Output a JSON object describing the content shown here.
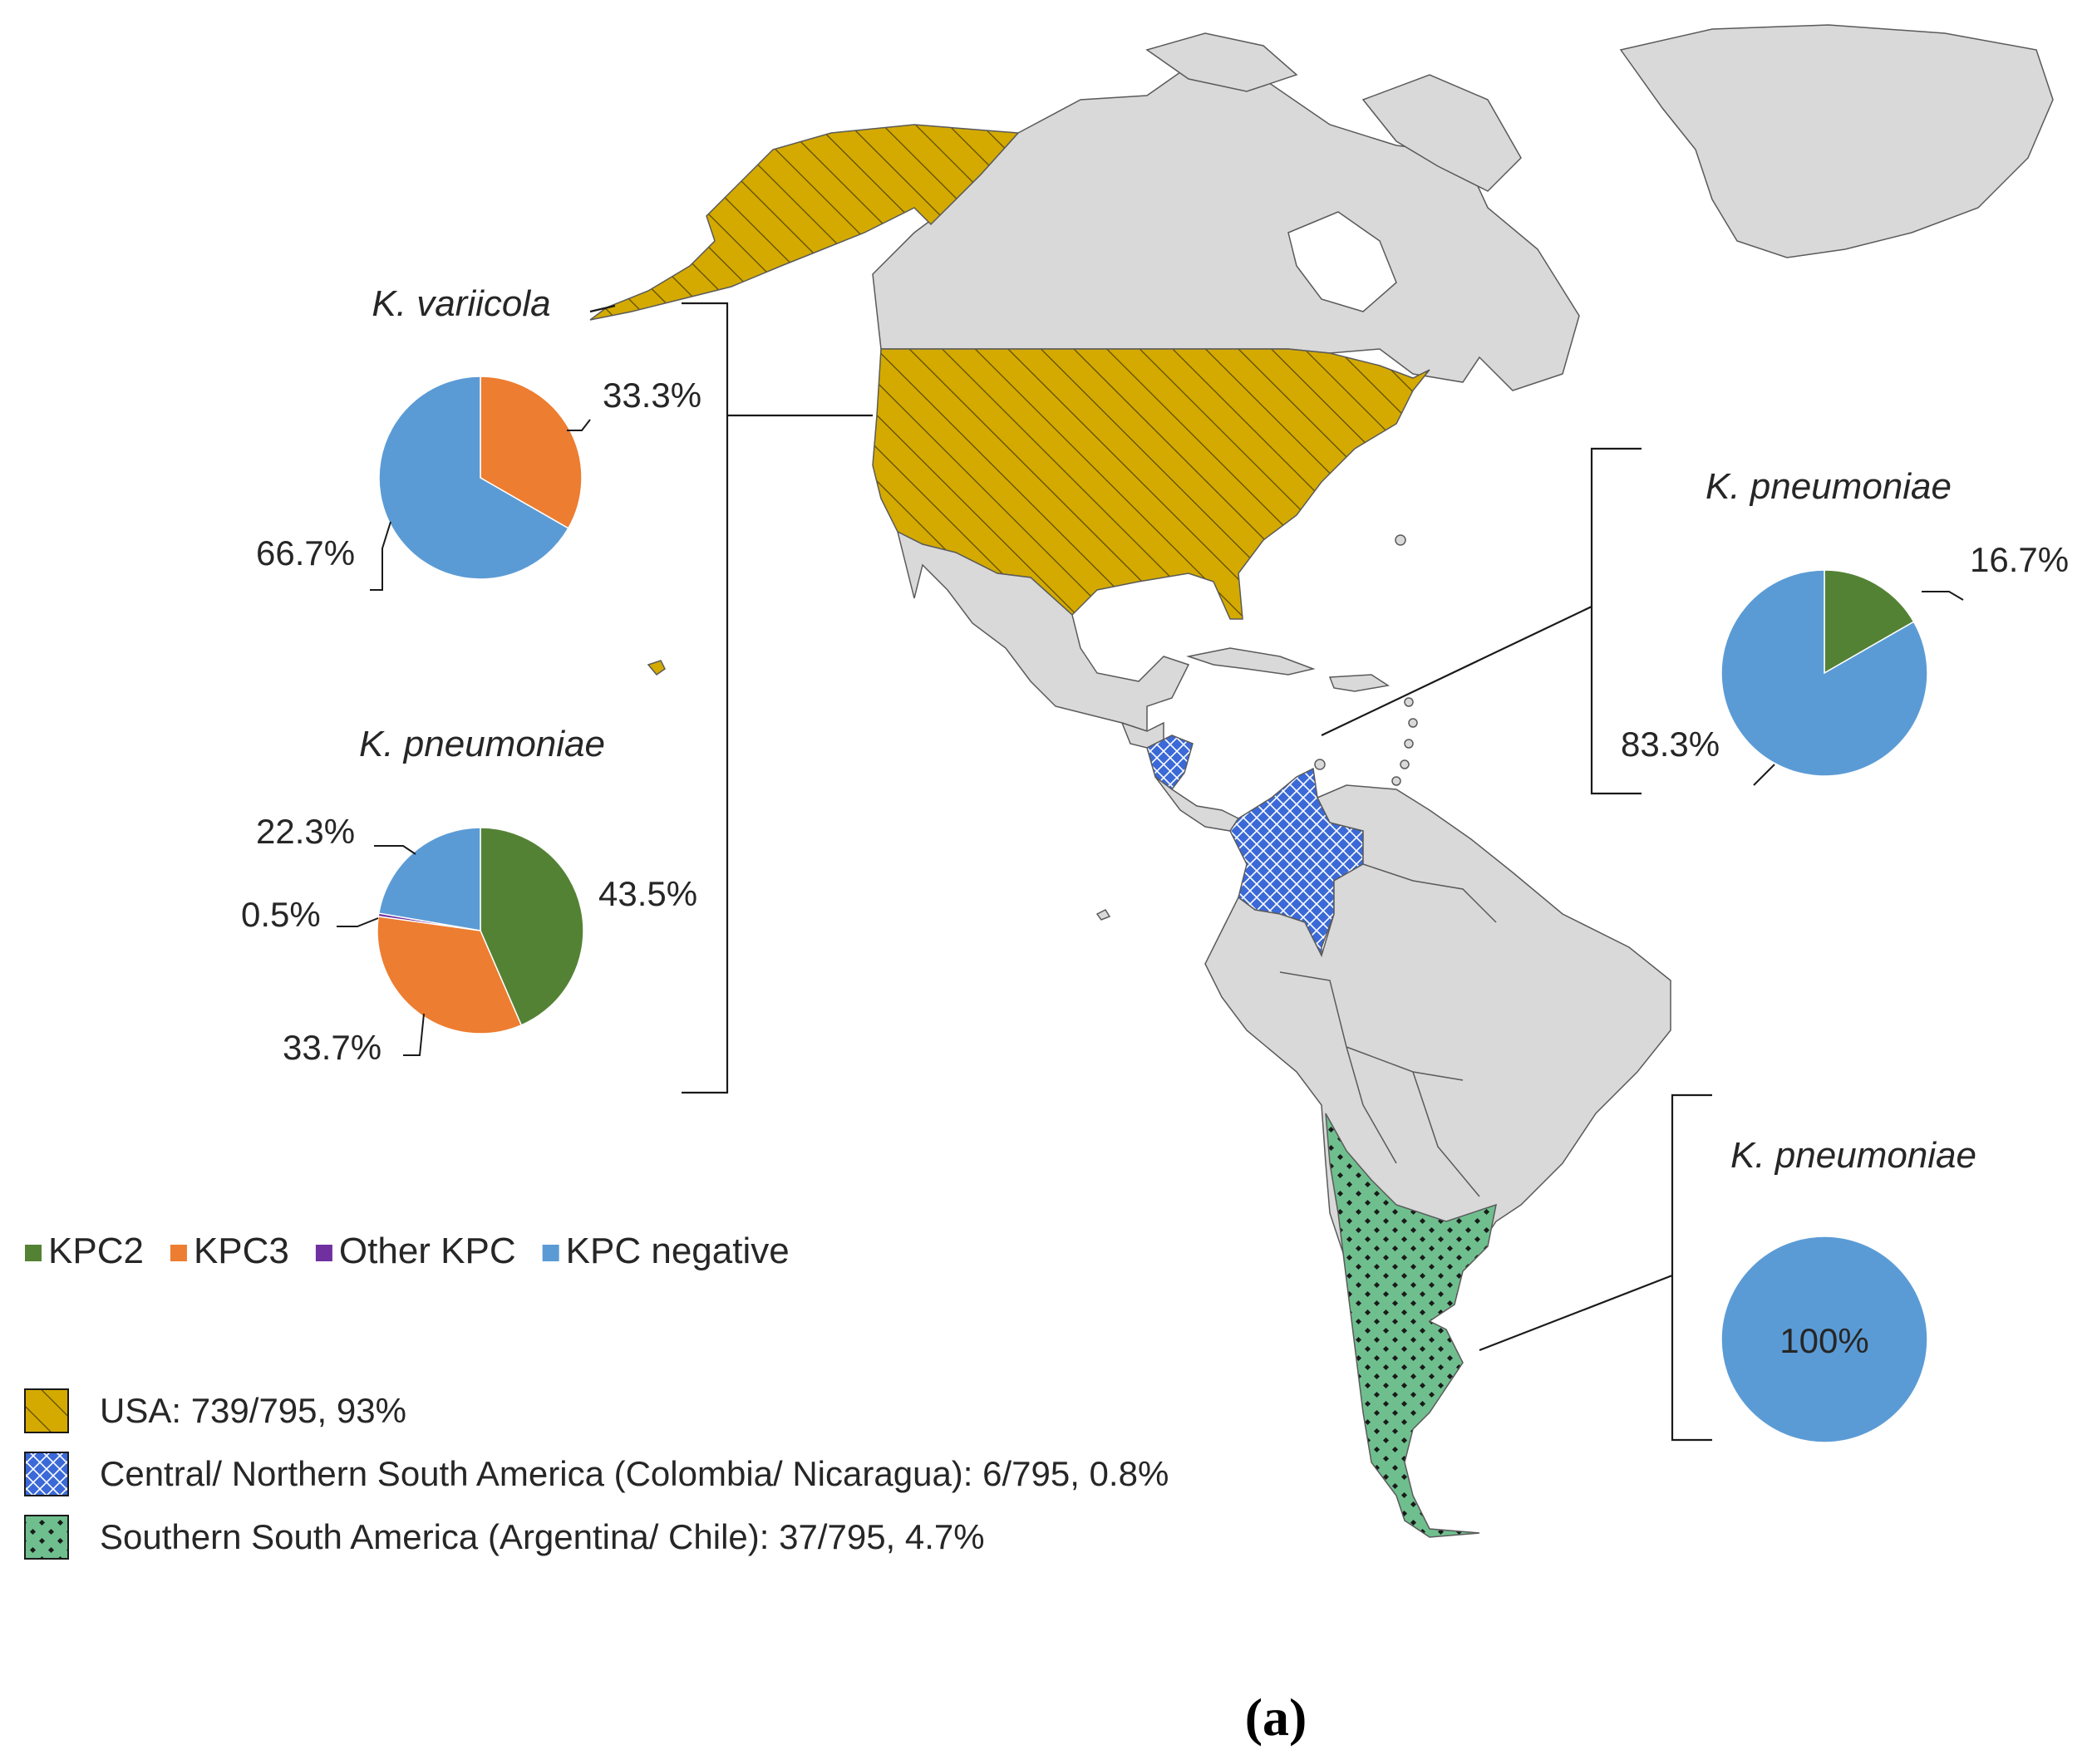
{
  "colors": {
    "KPC2": "#548235",
    "KPC3": "#ed7d31",
    "Other KPC": "#7030a0",
    "KPC negative": "#5b9bd5",
    "land": "#d9d9d9",
    "usa": "#d4aa00",
    "central": "#3b6ad8",
    "southern": "#6fbf8e"
  },
  "legend": {
    "kpc_items": [
      {
        "label": "KPC2",
        "color": "#548235"
      },
      {
        "label": "KPC3",
        "color": "#ed7d31"
      },
      {
        "label": "Other KPC",
        "color": "#7030a0"
      },
      {
        "label": "KPC negative",
        "color": "#5b9bd5"
      }
    ],
    "region_items": [
      {
        "label": "USA: 739/795, 93%",
        "pattern": "hatch-diagonal"
      },
      {
        "label": "Central/ Northern South America (Colombia/ Nicaragua): 6/795, 0.8%",
        "pattern": "crosshatch"
      },
      {
        "label": "Southern South America (Argentina/ Chile): 37/795, 4.7%",
        "pattern": "dots"
      }
    ]
  },
  "caption": "(a)",
  "chart_data": [
    {
      "type": "pie",
      "region": "USA",
      "title": "K. variicola",
      "slices": [
        {
          "label": "KPC3",
          "value": 33.3,
          "text": "33.3%"
        },
        {
          "label": "KPC negative",
          "value": 66.7,
          "text": "66.7%"
        }
      ]
    },
    {
      "type": "pie",
      "region": "USA",
      "title": "K. pneumoniae",
      "slices": [
        {
          "label": "KPC2",
          "value": 43.5,
          "text": "43.5%"
        },
        {
          "label": "KPC3",
          "value": 33.7,
          "text": "33.7%"
        },
        {
          "label": "Other KPC",
          "value": 0.5,
          "text": "0.5%"
        },
        {
          "label": "KPC negative",
          "value": 22.3,
          "text": "22.3%"
        }
      ]
    },
    {
      "type": "pie",
      "region": "Central/ Northern South America",
      "title": "K. pneumoniae",
      "slices": [
        {
          "label": "KPC2",
          "value": 16.7,
          "text": "16.7%"
        },
        {
          "label": "KPC negative",
          "value": 83.3,
          "text": "83.3%"
        }
      ]
    },
    {
      "type": "pie",
      "region": "Southern South America",
      "title": "K. pneumoniae",
      "slices": [
        {
          "label": "KPC negative",
          "value": 100,
          "text": "100%"
        }
      ]
    }
  ]
}
